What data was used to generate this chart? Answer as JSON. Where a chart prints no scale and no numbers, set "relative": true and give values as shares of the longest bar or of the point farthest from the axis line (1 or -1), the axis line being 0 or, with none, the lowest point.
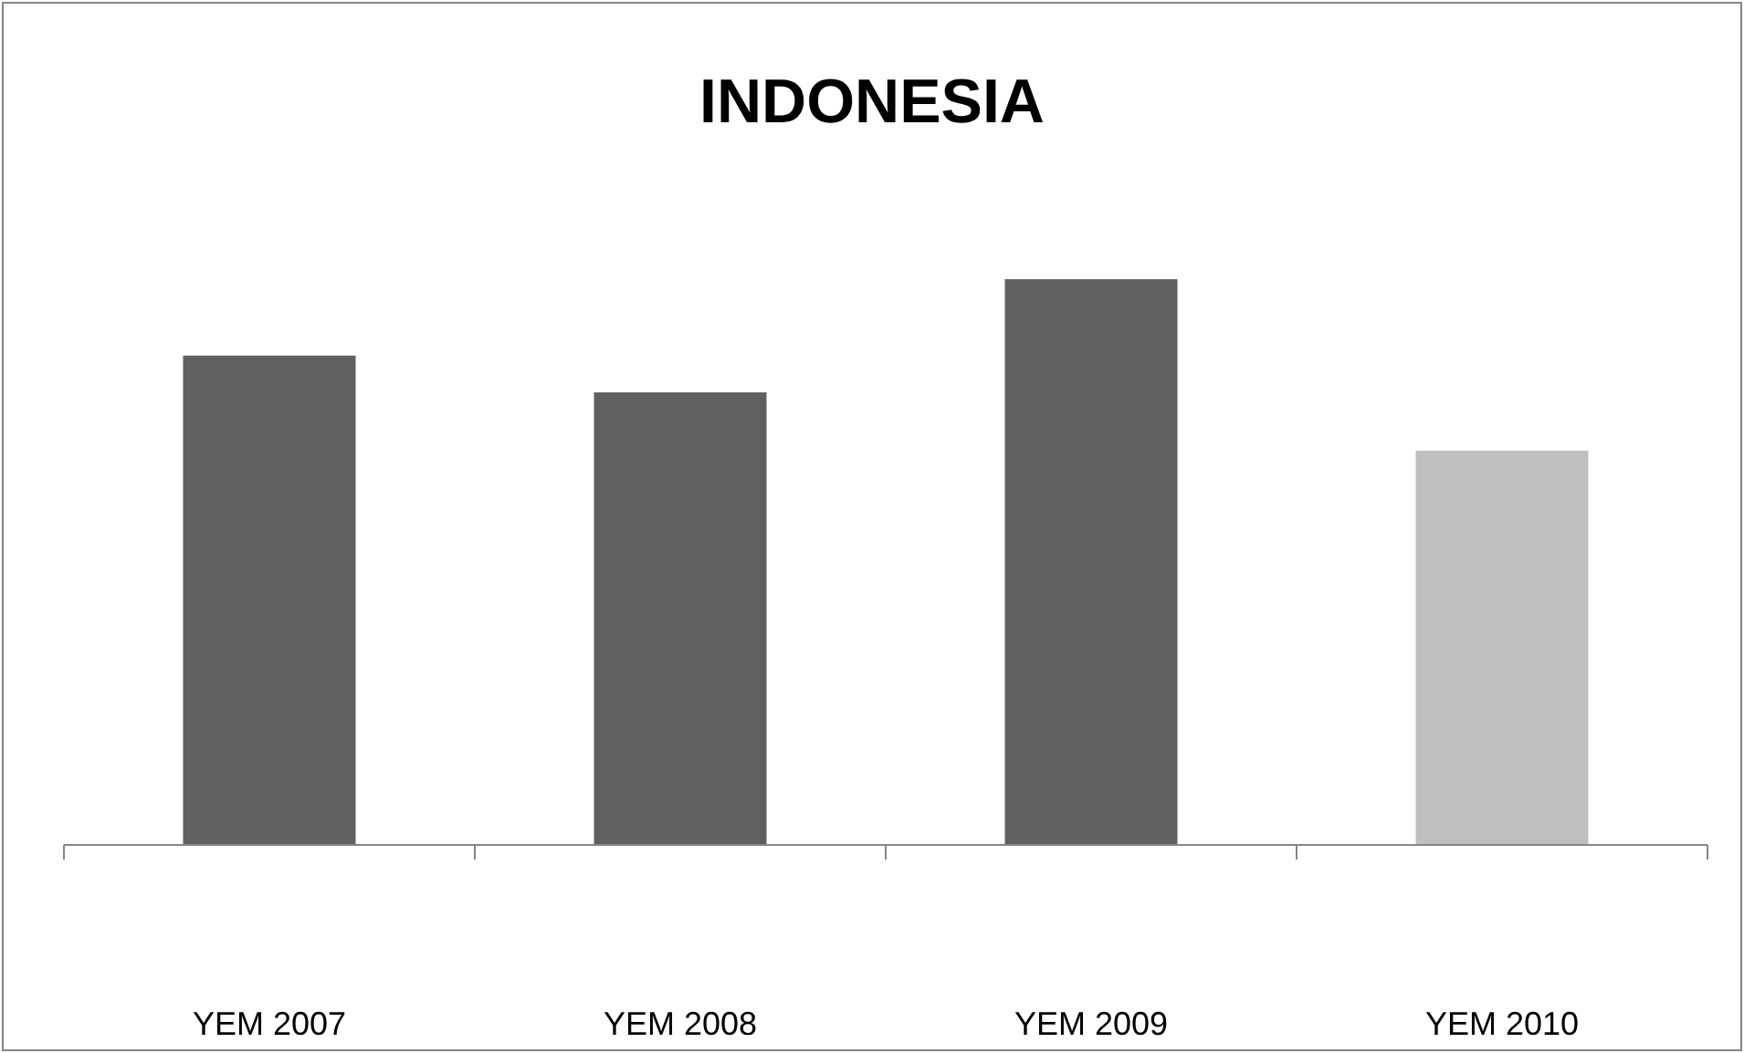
{
  "chart_data": {
    "type": "bar",
    "title": "INDONESIA",
    "relative": true,
    "categories": [
      "YEM 2007",
      "YEM 2008",
      "YEM 2009",
      "YEM 2010"
    ],
    "values": [
      0.865,
      0.8,
      1,
      0.697
    ],
    "colors": [
      "#606060",
      "#606060",
      "#606060",
      "#bfbfbf"
    ]
  }
}
